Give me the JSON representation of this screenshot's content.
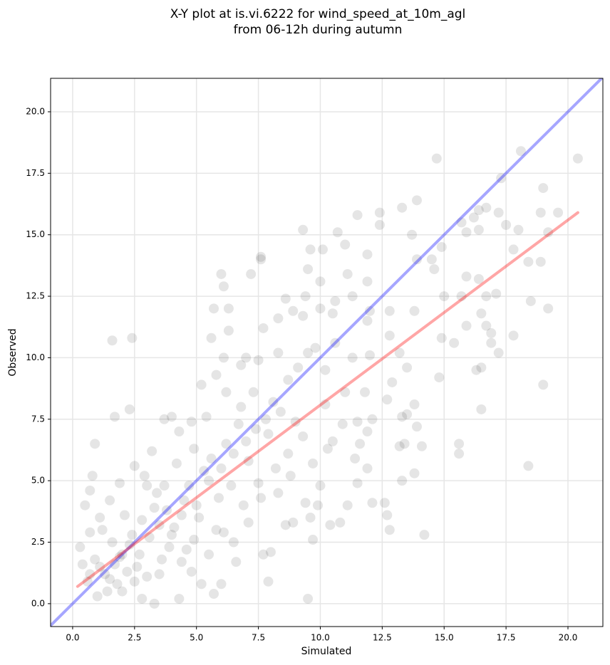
{
  "chart_data": {
    "type": "scatter",
    "title": [
      "X-Y plot at is.vi.6222 for wind_speed_at_10m_agl",
      "from 06-12h during autumn"
    ],
    "x_label": "Simulated",
    "y_label": "Observed",
    "xlim": [
      -0.89,
      21.41
    ],
    "ylim": [
      -0.93,
      21.36
    ],
    "xticks": [
      {
        "value": 0,
        "label": "0.0"
      },
      2.5,
      {
        "value": 5,
        "label": "5.0"
      },
      7.5,
      {
        "value": 10,
        "label": "10.0"
      },
      12.5,
      {
        "value": 15,
        "label": "15.0"
      },
      17.5,
      {
        "value": 20,
        "label": "20.0"
      }
    ],
    "yticks": [
      {
        "value": 0,
        "label": "0.0"
      },
      2.5,
      {
        "value": 5,
        "label": "5.0"
      },
      7.5,
      {
        "value": 10,
        "label": "10.0"
      },
      12.5,
      {
        "value": 15,
        "label": "15.0"
      },
      17.5,
      {
        "value": 20,
        "label": "20.0"
      }
    ],
    "grid": true,
    "series": [
      {
        "type": "scatter",
        "color": "#000000",
        "alpha": 0.1,
        "x": [
          1.6,
          2.4,
          0.9,
          14.7,
          18.1,
          20.4,
          17.3,
          19.0,
          13.9,
          13.3,
          12.4,
          11.5,
          9.3,
          10.7,
          12.4,
          16.7,
          16.4,
          16.2,
          15.7,
          19.6,
          18.9,
          19.2,
          17.2,
          17.5,
          18.0,
          15.9,
          16.4,
          14.9,
          14.5,
          14.6,
          15.9,
          16.4,
          18.4,
          18.9,
          17.8,
          13.7,
          13.9,
          11.0,
          10.1,
          9.6,
          7.6,
          7.6,
          11.9,
          6.0,
          7.2,
          6.1,
          9.5,
          10.0,
          11.1,
          15.0,
          15.7,
          16.7,
          17.1,
          18.5,
          19.2,
          13.8,
          12.8,
          11.9,
          12.0,
          8.3,
          8.9,
          9.3,
          10.5,
          5.7,
          6.3,
          6.3,
          5.6,
          16.5,
          16.7,
          15.9,
          16.9,
          17.8,
          16.9,
          17.2,
          16.5,
          16.5,
          15.4,
          14.9,
          14.8,
          16.3,
          13.2,
          13.5,
          12.8,
          13.3,
          13.5,
          13.8,
          13.9,
          13.2,
          13.4,
          14.1,
          15.6,
          15.6,
          13.8,
          13.3,
          12.6,
          12.7,
          12.8,
          14.2,
          12.1,
          10.8,
          10.4,
          11.1,
          9.7,
          9.5,
          18.4,
          19.0,
          12.7,
          12.1,
          11.5,
          11.9,
          11.6,
          11.4,
          11.5,
          11.9,
          12.9,
          11.8,
          10.9,
          10.2,
          10.3,
          10.0,
          9.9,
          9.6,
          9.4,
          8.9,
          8.6,
          8.0,
          7.7,
          7.9,
          6.6,
          6.0,
          5.7,
          5.2,
          4.3,
          3.3,
          2.8,
          3.0,
          2.3,
          1.7,
          3.2,
          3.7,
          4.0,
          4.3,
          4.8,
          5.2,
          5.8,
          6.1,
          6.8,
          7.0,
          7.5,
          8.3,
          8.7,
          9.1,
          9.5,
          9.8,
          10.6,
          10.2,
          7.3,
          6.7,
          6.2,
          5.6,
          5.3,
          4.7,
          4.5,
          5.1,
          5.8,
          6.5,
          7.1,
          7.6,
          8.2,
          8.7,
          9.0,
          9.3,
          8.4,
          7.9,
          7.1,
          6.4,
          5.9,
          4.9,
          4.4,
          3.9,
          3.5,
          3.1,
          2.7,
          2.2,
          1.8,
          1.4,
          1.0,
          0.6,
          0.4,
          0.3,
          0.7,
          1.1,
          1.5,
          1.9,
          2.5,
          2.9,
          3.4,
          3.8,
          4.1,
          4.6,
          0.5,
          0.8,
          0.7,
          1.2,
          1.6,
          2.0,
          2.4,
          2.1,
          1.7,
          1.3,
          0.9,
          1.5,
          2.6,
          3.0,
          3.6,
          4.0,
          4.4,
          5.0,
          5.5,
          6.0,
          6.5,
          7.0,
          7.4,
          7.8,
          8.1,
          6.8,
          6.2,
          5.4,
          4.9,
          4.2,
          3.7,
          3.3,
          2.8,
          2.3,
          1.9,
          1.1,
          0.7,
          2.0,
          2.5,
          3.5,
          4.8,
          5.5,
          6.1,
          6.9,
          7.5,
          8.3,
          8.8,
          9.7,
          10.5,
          11.0,
          11.3,
          12.0,
          7.7,
          8.6,
          9.4,
          10.0,
          10.6,
          11.3,
          11.9
        ],
        "values": [
          10.7,
          10.8,
          6.5,
          18.1,
          18.4,
          18.1,
          17.3,
          16.9,
          16.4,
          16.1,
          15.9,
          15.8,
          15.2,
          15.1,
          15.4,
          16.1,
          16.0,
          15.7,
          15.5,
          15.9,
          15.9,
          15.1,
          15.9,
          15.4,
          15.2,
          15.1,
          15.2,
          14.5,
          14.0,
          13.6,
          13.3,
          13.2,
          13.9,
          13.9,
          14.4,
          15.0,
          14.0,
          14.6,
          14.4,
          14.4,
          14.1,
          14.0,
          14.2,
          13.4,
          13.4,
          12.9,
          13.6,
          13.1,
          13.4,
          12.5,
          12.5,
          12.5,
          12.6,
          12.3,
          12.0,
          11.9,
          11.9,
          11.5,
          11.9,
          11.6,
          11.9,
          11.7,
          11.8,
          12.0,
          12.0,
          11.1,
          10.8,
          11.8,
          11.3,
          11.3,
          11.0,
          10.9,
          10.6,
          10.2,
          9.6,
          7.9,
          10.6,
          10.8,
          9.2,
          9.5,
          10.2,
          9.6,
          10.9,
          7.6,
          7.7,
          8.1,
          7.2,
          6.4,
          6.5,
          6.4,
          6.5,
          6.1,
          5.3,
          5.0,
          4.1,
          3.6,
          3.0,
          2.8,
          4.1,
          3.3,
          3.2,
          4.0,
          2.6,
          0.2,
          5.6,
          8.9,
          8.3,
          7.5,
          7.4,
          7.0,
          6.5,
          5.9,
          4.9,
          5.5,
          9.0,
          8.6,
          7.3,
          8.1,
          6.3,
          4.8,
          4.0,
          3.5,
          4.1,
          3.3,
          3.2,
          2.1,
          2.0,
          0.9,
          1.7,
          0.8,
          0.4,
          0.8,
          0.2,
          0.0,
          0.2,
          4.8,
          7.9,
          7.6,
          6.2,
          7.5,
          7.6,
          7.0,
          7.4,
          8.9,
          9.3,
          10.0,
          9.7,
          10.0,
          9.9,
          10.2,
          9.1,
          9.6,
          10.2,
          10.4,
          10.6,
          9.5,
          8.6,
          7.3,
          6.5,
          5.9,
          5.4,
          4.8,
          4.2,
          3.5,
          3.0,
          2.5,
          3.3,
          4.3,
          5.5,
          6.1,
          7.4,
          6.8,
          7.8,
          6.9,
          5.8,
          4.8,
          4.3,
          2.6,
          1.7,
          2.3,
          3.2,
          2.7,
          2.0,
          1.3,
          0.8,
          0.5,
          0.3,
          0.9,
          1.6,
          2.3,
          2.9,
          3.5,
          4.2,
          4.9,
          5.6,
          5.2,
          4.5,
          3.8,
          3.1,
          2.2,
          4.0,
          5.2,
          4.6,
          3.0,
          2.5,
          2.0,
          2.8,
          3.6,
          1.6,
          1.2,
          1.8,
          1.0,
          1.5,
          1.1,
          1.8,
          2.8,
          3.6,
          4.0,
          5.0,
          5.5,
          6.1,
          6.6,
          7.1,
          7.5,
          8.2,
          8.0,
          8.6,
          7.6,
          6.3,
          5.7,
          4.8,
          3.9,
          3.4,
          2.4,
          1.9,
          1.5,
          1.2,
          0.5,
          0.9,
          1.2,
          1.3,
          2.0,
          2.9,
          4.0,
          4.9,
          4.5,
          5.2,
          5.7,
          6.6,
          8.6,
          10.0,
          10.1,
          11.2,
          12.4,
          12.5,
          12.0,
          12.3,
          12.5,
          13.1
        ]
      },
      {
        "type": "line",
        "color": "#0000ff",
        "alpha": 0.35,
        "x": [
          -0.9,
          21.4
        ],
        "values": [
          -0.9,
          21.4
        ]
      },
      {
        "type": "line",
        "color": "#ff0000",
        "alpha": 0.35,
        "x": [
          0.2,
          20.4
        ],
        "values": [
          0.7,
          15.9
        ]
      }
    ]
  }
}
